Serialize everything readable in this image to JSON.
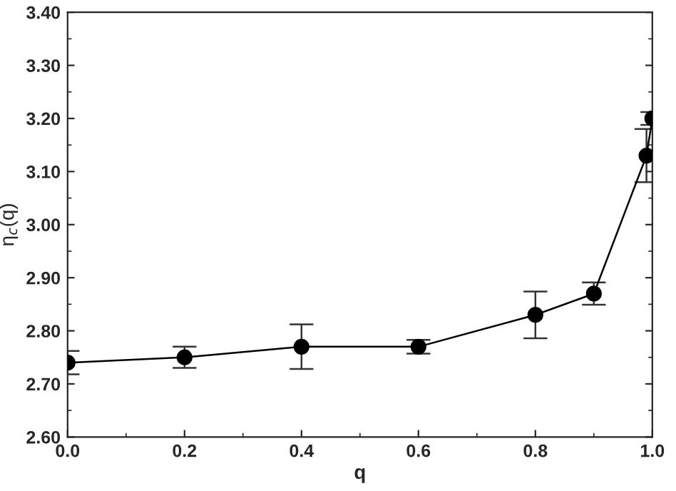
{
  "chart_data": {
    "type": "line",
    "xlabel": "q",
    "ylabel": "η$_{c}$(q)",
    "x": [
      0.0,
      0.2,
      0.4,
      0.6,
      0.8,
      0.9,
      0.99,
      1.0
    ],
    "series": [
      {
        "color": "#000000",
        "values": [
          2.74,
          2.75,
          2.77,
          2.77,
          2.83,
          2.87,
          3.13,
          3.2
        ],
        "errors": [
          0.022,
          0.02,
          0.042,
          0.013,
          0.044,
          0.021,
          0.05,
          0.012
        ]
      }
    ],
    "marker": "circle",
    "line_style": "solid",
    "grid": false,
    "legend": false,
    "xlim": [
      0.0,
      1.0
    ],
    "xticks": [
      {
        "value": 0.0,
        "label": "0.0"
      },
      0.2,
      0.4,
      0.6,
      0.8,
      {
        "value": 1.0,
        "label": "1.0"
      }
    ],
    "ylim": [
      2.6,
      3.4
    ],
    "yticks": [
      {
        "value": 2.6,
        "label": "2.60"
      },
      {
        "value": 2.7,
        "label": "2.70"
      },
      {
        "value": 2.8,
        "label": "2.80"
      },
      {
        "value": 2.9,
        "label": "2.90"
      },
      {
        "value": 3.0,
        "label": "3.00"
      },
      {
        "value": 3.1,
        "label": "3.10"
      },
      {
        "value": 3.2,
        "label": "3.20"
      },
      {
        "value": 3.3,
        "label": "3.30"
      },
      {
        "value": 3.4,
        "label": "3.40"
      }
    ]
  }
}
